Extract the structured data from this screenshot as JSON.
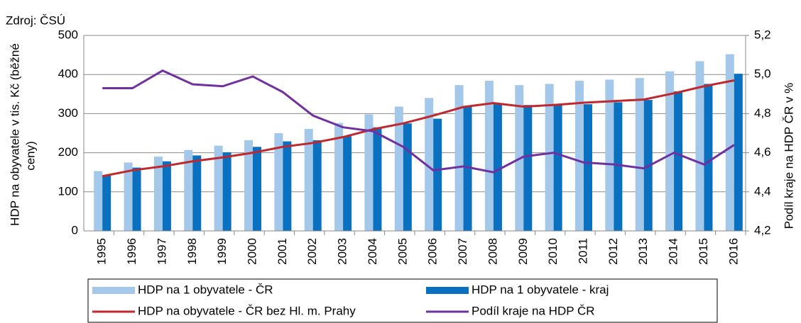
{
  "chart_data": {
    "type": "bar",
    "annotation": "Zdroj: ČSÚ",
    "ylabel": [
      "HDP na obyvatele v tis. Kč  (běžné",
      "ceny)"
    ],
    "y2label": "Podíl  kraje na HDP ČR v %",
    "categories": [
      "1995",
      "1996",
      "1997",
      "1998",
      "1999",
      "2000",
      "2001",
      "2002",
      "2003",
      "2004",
      "2005",
      "2006",
      "2007",
      "2008",
      "2009",
      "2010",
      "2011",
      "2012",
      "2013",
      "2014",
      "2015",
      "2016"
    ],
    "ylim": [
      0,
      500
    ],
    "yticks": [
      0,
      100,
      200,
      300,
      400,
      500
    ],
    "y2lim": [
      4.2,
      5.2
    ],
    "y2ticks": [
      {
        "value": 4.2,
        "label": "4,2"
      },
      {
        "value": 4.4,
        "label": "4,4"
      },
      {
        "value": 4.6,
        "label": "4,6"
      },
      {
        "value": 4.8,
        "label": "4,8"
      },
      {
        "value": 5.0,
        "label": "5,0"
      },
      {
        "value": 5.2,
        "label": "5,2"
      }
    ],
    "grid": true,
    "series": [
      {
        "name": "HDP na 1 obyvatele - ČR",
        "type": "bar",
        "color": "#a3c8ea",
        "values": [
          153,
          175,
          190,
          207,
          218,
          232,
          250,
          261,
          276,
          298,
          318,
          340,
          373,
          384,
          373,
          376,
          384,
          387,
          391,
          408,
          434,
          452
        ]
      },
      {
        "name": "HDP na 1 obyvatele - kraj",
        "type": "bar",
        "color": "#0a70c0",
        "values": [
          142,
          162,
          178,
          193,
          201,
          215,
          229,
          232,
          242,
          265,
          275,
          287,
          318,
          326,
          322,
          325,
          324,
          329,
          335,
          357,
          376,
          402
        ]
      },
      {
        "name": "HDP na obyvatele - ČR bez Hl. m. Prahy",
        "type": "line",
        "color": "#c0282d",
        "values": [
          140,
          155,
          165,
          178,
          188,
          200,
          215,
          225,
          240,
          260,
          275,
          295,
          317,
          327,
          318,
          322,
          328,
          332,
          336,
          352,
          370,
          385
        ]
      },
      {
        "name": "Podíl kraje na HDP ČR",
        "type": "line",
        "axis": "y2",
        "color": "#7030a0",
        "values": [
          4.93,
          4.93,
          5.02,
          4.95,
          4.94,
          4.99,
          4.91,
          4.79,
          4.73,
          4.71,
          4.63,
          4.51,
          4.53,
          4.5,
          4.58,
          4.6,
          4.55,
          4.54,
          4.52,
          4.6,
          4.54,
          4.64
        ]
      }
    ]
  }
}
